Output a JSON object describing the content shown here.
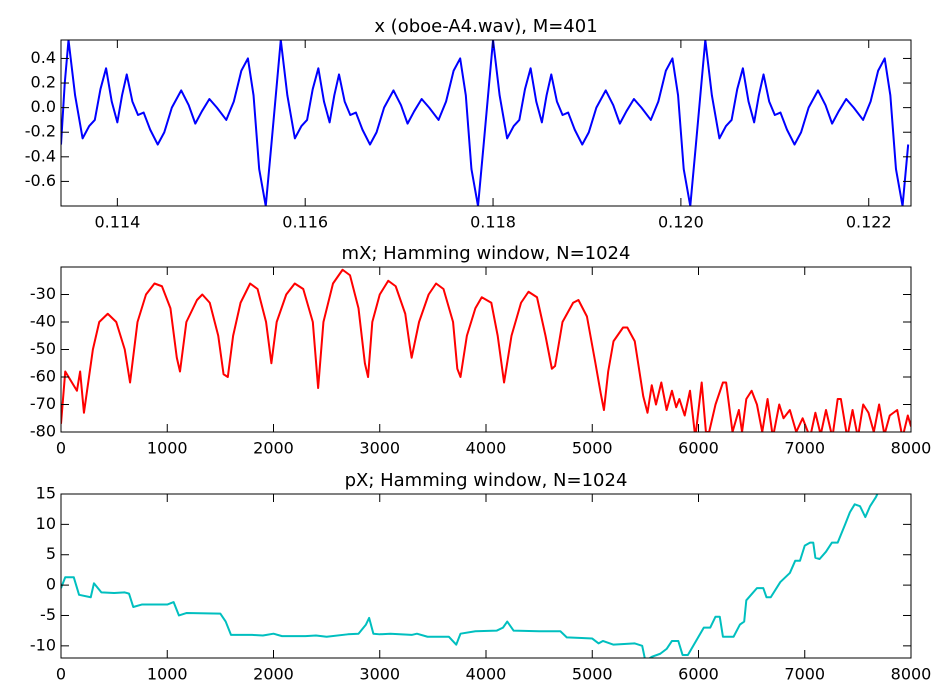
{
  "chart_data": [
    {
      "type": "line",
      "title": "x (oboe-A4.wav), M=401",
      "color": "#0000ff",
      "xlim": [
        0.1134,
        0.12245
      ],
      "ylim": [
        -0.8,
        0.55
      ],
      "xticks": [
        0.114,
        0.116,
        0.118,
        {
          "value": 0.12,
          "label": "0.120"
        },
        0.122
      ],
      "yticks": [
        0.4,
        0.2,
        {
          "value": 0,
          "label": "0.0"
        },
        -0.2,
        -0.4,
        -0.6
      ],
      "x": [
        0.1134,
        0.11344,
        0.11348,
        0.11355,
        0.11363,
        0.1137,
        0.11376,
        0.11382,
        0.11388,
        0.11394,
        0.114,
        0.11405,
        0.1141,
        0.11416,
        0.11422,
        0.11428,
        0.11435,
        0.11443,
        0.1145,
        0.11458,
        0.11468,
        0.11476,
        0.11483,
        0.1149,
        0.11498,
        0.11506,
        0.11516,
        0.11524,
        0.11532,
        0.11539,
        0.11545,
        0.11551,
        0.11558,
        0.11564,
        0.11574,
        0.11581,
        0.11589,
        0.11596,
        0.11602,
        0.11608,
        0.11614,
        0.1162,
        0.11626,
        0.11631,
        0.11636,
        0.11642,
        0.11648,
        0.11654,
        0.11661,
        0.11669,
        0.11676,
        0.11684,
        0.11694,
        0.11702,
        0.11709,
        0.11716,
        0.11724,
        0.11732,
        0.11742,
        0.1175,
        0.11758,
        0.11765,
        0.11771,
        0.11777,
        0.11784,
        0.1179,
        0.118,
        0.11807,
        0.11815,
        0.11822,
        0.11828,
        0.11834,
        0.1184,
        0.11846,
        0.11852,
        0.11857,
        0.11862,
        0.11868,
        0.11874,
        0.1188,
        0.11887,
        0.11895,
        0.11902,
        0.1191,
        0.1192,
        0.11928,
        0.11935,
        0.11942,
        0.1195,
        0.11958,
        0.11968,
        0.11976,
        0.11984,
        0.11991,
        0.11997,
        0.12003,
        0.1201,
        0.12016,
        0.12026,
        0.12033,
        0.12041,
        0.12048,
        0.12054,
        0.1206,
        0.12066,
        0.12072,
        0.12078,
        0.12083,
        0.12088,
        0.12094,
        0.121,
        0.12106,
        0.12113,
        0.12121,
        0.12128,
        0.12136,
        0.12146,
        0.12154,
        0.12161,
        0.12168,
        0.12176,
        0.12184,
        0.12194,
        0.12202,
        0.1221,
        0.12217,
        0.12223,
        0.12229,
        0.12236,
        0.12242
      ],
      "values": [
        -0.3,
        0.2,
        0.55,
        0.1,
        -0.25,
        -0.15,
        -0.1,
        0.15,
        0.32,
        0.05,
        -0.12,
        0.1,
        0.27,
        0.05,
        -0.06,
        -0.04,
        -0.18,
        -0.3,
        -0.2,
        0,
        0.14,
        0.02,
        -0.13,
        -0.03,
        0.07,
        0,
        -0.1,
        0.05,
        0.3,
        0.4,
        0.1,
        -0.5,
        -0.8,
        -0.3,
        0.55,
        0.1,
        -0.25,
        -0.15,
        -0.1,
        0.15,
        0.32,
        0.05,
        -0.12,
        0.1,
        0.27,
        0.05,
        -0.06,
        -0.04,
        -0.18,
        -0.3,
        -0.2,
        0,
        0.14,
        0.02,
        -0.13,
        -0.03,
        0.07,
        0,
        -0.1,
        0.05,
        0.3,
        0.4,
        0.1,
        -0.5,
        -0.8,
        -0.3,
        0.55,
        0.1,
        -0.25,
        -0.15,
        -0.1,
        0.15,
        0.32,
        0.05,
        -0.12,
        0.1,
        0.27,
        0.05,
        -0.06,
        -0.04,
        -0.18,
        -0.3,
        -0.2,
        0,
        0.14,
        0.02,
        -0.13,
        -0.03,
        0.07,
        0,
        -0.1,
        0.05,
        0.3,
        0.4,
        0.1,
        -0.5,
        -0.8,
        -0.3,
        0.55,
        0.1,
        -0.25,
        -0.15,
        -0.1,
        0.15,
        0.32,
        0.05,
        -0.12,
        0.1,
        0.27,
        0.05,
        -0.06,
        -0.04,
        -0.18,
        -0.3,
        -0.2,
        0,
        0.14,
        0.02,
        -0.13,
        -0.03,
        0.07,
        0,
        -0.1,
        0.05,
        0.3,
        0.4,
        0.1,
        -0.5,
        -0.8,
        -0.3
      ]
    },
    {
      "type": "line",
      "title": "mX; Hamming window, N=1024",
      "color": "#ff0000",
      "xlim": [
        0,
        8000
      ],
      "ylim": [
        -80,
        -20
      ],
      "xticks": [
        0,
        1000,
        2000,
        3000,
        4000,
        5000,
        6000,
        7000,
        8000
      ],
      "yticks": [
        -30,
        -40,
        -50,
        -60,
        -70,
        -80
      ],
      "x": [
        0,
        40,
        150,
        180,
        216,
        300,
        360,
        440,
        520,
        600,
        650,
        720,
        800,
        880,
        950,
        1030,
        1090,
        1120,
        1180,
        1280,
        1330,
        1400,
        1480,
        1530,
        1570,
        1620,
        1690,
        1780,
        1850,
        1930,
        1980,
        2030,
        2120,
        2200,
        2280,
        2370,
        2420,
        2470,
        2560,
        2650,
        2720,
        2800,
        2860,
        2890,
        2930,
        3000,
        3080,
        3150,
        3240,
        3280,
        3300,
        3370,
        3460,
        3530,
        3600,
        3690,
        3730,
        3760,
        3820,
        3900,
        3960,
        4050,
        4110,
        4170,
        4240,
        4330,
        4400,
        4480,
        4560,
        4620,
        4650,
        4720,
        4820,
        4870,
        4950,
        5030,
        5080,
        5110,
        5150,
        5200,
        5290,
        5330,
        5400,
        5480,
        5520,
        5560,
        5600,
        5650,
        5700,
        5750,
        5790,
        5820,
        5870,
        5920,
        5970,
        6030,
        6070,
        6100,
        6160,
        6230,
        6260,
        6320,
        6380,
        6410,
        6450,
        6500,
        6550,
        6600,
        6650,
        6700,
        6760,
        6800,
        6860,
        6920,
        6980,
        7050,
        7100,
        7150,
        7200,
        7260,
        7310,
        7340,
        7400,
        7450,
        7500,
        7550,
        7600,
        7650,
        7700,
        7750,
        7800,
        7870,
        7920,
        7970,
        8000
      ],
      "values": [
        -77,
        -58,
        -65,
        -58,
        -73,
        -50,
        -40,
        -37,
        -40,
        -50,
        -62,
        -40,
        -30,
        -26,
        -27,
        -35,
        -53,
        -58,
        -40,
        -32,
        -30,
        -33,
        -45,
        -59,
        -60,
        -45,
        -33,
        -26,
        -28,
        -40,
        -55,
        -40,
        -30,
        -26,
        -28,
        -40,
        -64,
        -40,
        -26,
        -21,
        -23,
        -35,
        -55,
        -60,
        -40,
        -30,
        -25,
        -27,
        -37,
        -48,
        -53,
        -40,
        -30,
        -26,
        -28,
        -40,
        -57,
        -60,
        -45,
        -35,
        -31,
        -33,
        -45,
        -62,
        -45,
        -33,
        -29,
        -31,
        -45,
        -57,
        -56,
        -40,
        -33,
        -32,
        -38,
        -55,
        -66,
        -72,
        -58,
        -47,
        -42,
        -42,
        -47,
        -67,
        -73,
        -63,
        -70,
        -62,
        -72,
        -65,
        -71,
        -68,
        -74,
        -65,
        -82,
        -62,
        -80,
        -80,
        -70,
        -62,
        -62,
        -80,
        -72,
        -80,
        -68,
        -65,
        -70,
        -80,
        -68,
        -82,
        -70,
        -75,
        -72,
        -80,
        -75,
        -82,
        -73,
        -81,
        -72,
        -82,
        -68,
        -68,
        -82,
        -72,
        -82,
        -70,
        -73,
        -80,
        -70,
        -81,
        -74,
        -72,
        -82,
        -74,
        -78
      ]
    },
    {
      "type": "line",
      "title": "pX; Hamming window, N=1024",
      "color": "#00bfbf",
      "xlim": [
        0,
        8000
      ],
      "ylim": [
        -12,
        15
      ],
      "xticks": [
        0,
        1000,
        2000,
        3000,
        4000,
        5000,
        6000,
        7000,
        8000
      ],
      "yticks": [
        15,
        10,
        5,
        0,
        -5,
        -10
      ],
      "x": [
        0,
        40,
        120,
        170,
        280,
        310,
        380,
        500,
        600,
        640,
        680,
        760,
        1000,
        1060,
        1110,
        1180,
        1500,
        1550,
        1600,
        1800,
        1900,
        2000,
        2080,
        2300,
        2400,
        2500,
        2700,
        2800,
        2870,
        2900,
        2940,
        3000,
        3100,
        3300,
        3350,
        3450,
        3650,
        3720,
        3760,
        3900,
        4100,
        4160,
        4200,
        4260,
        4500,
        4700,
        4760,
        4900,
        5000,
        5060,
        5100,
        5200,
        5400,
        5470,
        5500,
        5560,
        5640,
        5700,
        5750,
        5810,
        5850,
        5900,
        5950,
        6000,
        6050,
        6110,
        6160,
        6200,
        6230,
        6330,
        6390,
        6430,
        6450,
        6500,
        6550,
        6610,
        6640,
        6680,
        6770,
        6860,
        6910,
        6955,
        7000,
        7050,
        7080,
        7100,
        7140,
        7200,
        7256,
        7310,
        7380,
        7425,
        7470,
        7520,
        7570,
        7615,
        7670,
        7710
      ],
      "values": [
        -0.5,
        1.3,
        1.3,
        -1.6,
        -2,
        0.3,
        -1.2,
        -1.3,
        -1.2,
        -1.4,
        -3.6,
        -3.2,
        -3.2,
        -2.8,
        -5,
        -4.6,
        -4.7,
        -6,
        -8.2,
        -8.2,
        -8.3,
        -8,
        -8.4,
        -8.4,
        -8.3,
        -8.5,
        -8.1,
        -8,
        -6.5,
        -5.4,
        -8,
        -8.1,
        -8,
        -8.2,
        -8,
        -8.5,
        -8.5,
        -9.8,
        -8,
        -7.6,
        -7.5,
        -7,
        -6,
        -7.5,
        -7.6,
        -7.6,
        -8.6,
        -8.7,
        -8.8,
        -9.6,
        -9.2,
        -9.8,
        -9.6,
        -10,
        -12.5,
        -11.8,
        -11.3,
        -10.5,
        -9.2,
        -9.2,
        -11.5,
        -11.5,
        -10,
        -8.5,
        -7,
        -7,
        -5.2,
        -5.2,
        -8.5,
        -8.5,
        -6.5,
        -6,
        -2.5,
        -1.5,
        -0.5,
        -0.5,
        -2,
        -2,
        0.5,
        2,
        4,
        4,
        6.5,
        7,
        7,
        4.5,
        4.3,
        5.5,
        7,
        7,
        10,
        12,
        13.3,
        13,
        11.2,
        13,
        14.5,
        16
      ]
    }
  ]
}
